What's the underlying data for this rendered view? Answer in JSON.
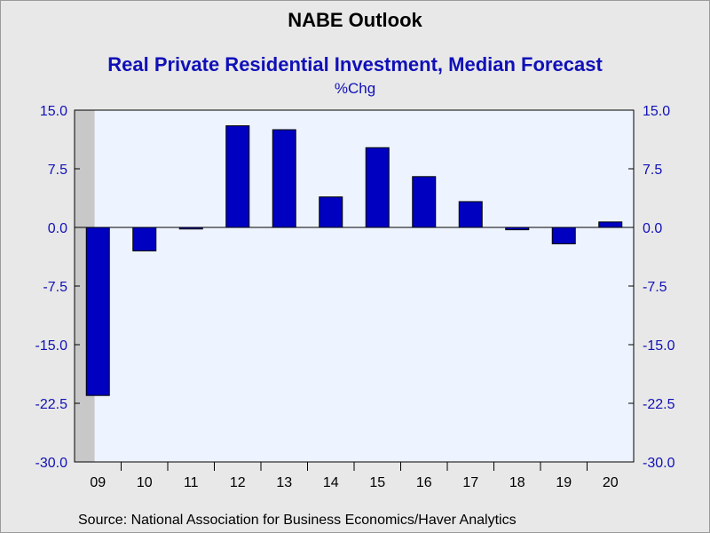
{
  "header": {
    "title": "NABE Outlook",
    "subtitle": "Real Private Residential Investment, Median Forecast",
    "unit": "%Chg"
  },
  "footer": {
    "source": "Source:  National Association for Business Economics/Haver Analytics"
  },
  "colors": {
    "bar": "#0000c0",
    "plot_bg": "#eef4ff",
    "recession": "#c8c8c8",
    "axis_text": "#1010b8"
  },
  "chart_data": {
    "type": "bar",
    "categories": [
      "09",
      "10",
      "11",
      "12",
      "13",
      "14",
      "15",
      "16",
      "17",
      "18",
      "19",
      "20"
    ],
    "values": [
      -21.5,
      -3.0,
      -0.2,
      13.0,
      12.5,
      3.9,
      10.2,
      6.5,
      3.3,
      -0.3,
      -2.1,
      0.7
    ],
    "ylim": [
      -30,
      15
    ],
    "yticks": [
      15.0,
      7.5,
      0.0,
      -7.5,
      -15.0,
      -22.5,
      -30.0
    ],
    "ytick_labels": [
      "15.0",
      "7.5",
      "0.0",
      "-7.5",
      "-15.0",
      "-22.5",
      "-30.0"
    ],
    "shaded_categories": [
      "09"
    ],
    "grid": false,
    "legend": "none"
  }
}
